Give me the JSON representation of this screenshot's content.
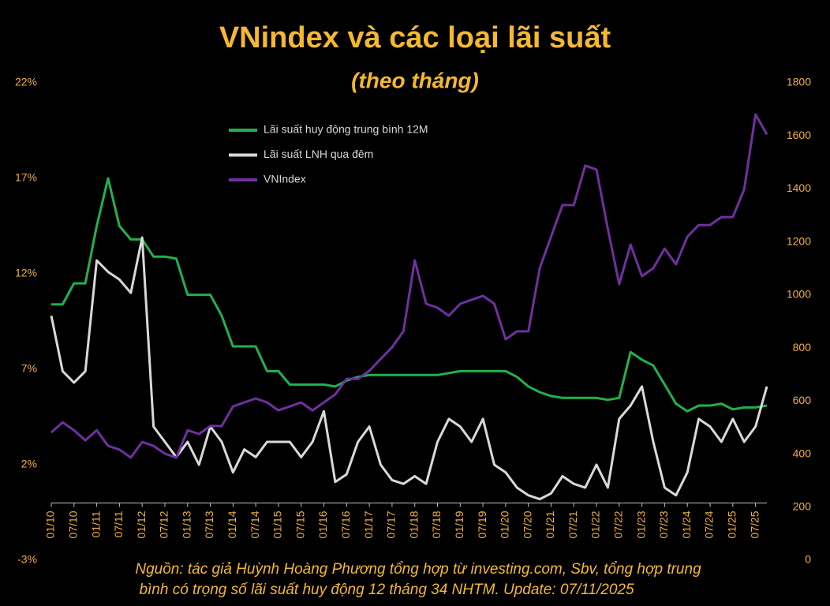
{
  "chart_data": {
    "type": "line",
    "title": "VNindex và các loại lãi suất",
    "subtitle": "(theo tháng)",
    "source": [
      "Nguồn: tác giả Huỳnh Hoàng Phương tổng hợp từ investing.com, Sbv, tổng hợp trung",
      "bình có trọng số lãi suất huy động 12 tháng 34 NHTM. Update: 07/11/2025"
    ],
    "categories": [
      "01/10",
      null,
      "07/10",
      null,
      "01/11",
      null,
      "07/11",
      null,
      "01/12",
      null,
      "07/12",
      null,
      "01/13",
      null,
      "07/13",
      null,
      "01/14",
      null,
      "07/14",
      null,
      "01/15",
      null,
      "07/15",
      null,
      "01/16",
      null,
      "07/16",
      null,
      "01/17",
      null,
      "07/17",
      null,
      "01/18",
      null,
      "07/18",
      null,
      "01/19",
      null,
      "07/19",
      null,
      "01/20",
      null,
      "07/20",
      null,
      "01/21",
      null,
      "07/21",
      null,
      "01/22",
      null,
      "07/22",
      null,
      "01/23",
      null,
      "07/23",
      null,
      "01/24",
      null,
      "07/24",
      null,
      "01/25",
      null,
      "07/25",
      null
    ],
    "series": [
      {
        "name": "Lãi suất huy động trung bình 12M",
        "color": "#22b14c",
        "axis": "y",
        "values": [
          10.4,
          10.4,
          11.5,
          11.5,
          14.5,
          17.0,
          14.5,
          13.8,
          13.8,
          12.9,
          12.9,
          12.8,
          10.9,
          10.9,
          10.9,
          9.8,
          8.2,
          8.2,
          8.2,
          6.9,
          6.9,
          6.2,
          6.2,
          6.2,
          6.2,
          6.1,
          6.4,
          6.6,
          6.7,
          6.7,
          6.7,
          6.7,
          6.7,
          6.7,
          6.7,
          6.8,
          6.9,
          6.9,
          6.9,
          6.9,
          6.9,
          6.6,
          6.1,
          5.8,
          5.6,
          5.5,
          5.5,
          5.5,
          5.5,
          5.4,
          5.5,
          7.9,
          7.5,
          7.2,
          6.2,
          5.2,
          4.8,
          5.1,
          5.1,
          5.2,
          4.9,
          5.0,
          5.0,
          5.1
        ]
      },
      {
        "name": "Lãi suất LNH qua đêm",
        "color": "#d9d9d9",
        "axis": "y",
        "values": [
          9.8,
          6.9,
          6.3,
          6.9,
          12.7,
          12.1,
          11.7,
          11.0,
          13.9,
          4.0,
          3.2,
          2.4,
          3.2,
          2.0,
          4.0,
          3.2,
          1.6,
          2.8,
          2.4,
          3.2,
          3.2,
          3.2,
          2.4,
          3.2,
          4.8,
          1.1,
          1.5,
          3.2,
          4.0,
          2.0,
          1.2,
          1.0,
          1.4,
          1.0,
          3.2,
          4.4,
          4.0,
          3.2,
          4.4,
          2.0,
          1.6,
          0.8,
          0.4,
          0.2,
          0.5,
          1.4,
          1.0,
          0.8,
          2.0,
          0.8,
          4.4,
          5.1,
          6.1,
          3.2,
          0.8,
          0.4,
          1.6,
          4.4,
          4.0,
          3.2,
          4.4,
          3.2,
          4.0,
          6.1
        ]
      },
      {
        "name": "VNIndex",
        "color": "#7030a0",
        "axis": "y2",
        "values": [
          482,
          520,
          490,
          452,
          490,
          431,
          417,
          387,
          446,
          431,
          402,
          387,
          490,
          476,
          506,
          506,
          580,
          595,
          610,
          595,
          565,
          580,
          595,
          565,
          595,
          625,
          684,
          684,
          714,
          759,
          803,
          863,
          1131,
          967,
          952,
          922,
          967,
          982,
          997,
          967,
          833,
          863,
          863,
          1101,
          1220,
          1339,
          1339,
          1488,
          1473,
          1250,
          1041,
          1190,
          1071,
          1101,
          1175,
          1116,
          1220,
          1264,
          1264,
          1294,
          1294,
          1398,
          1681,
          1606
        ]
      }
    ],
    "ylim": [
      -3,
      22
    ],
    "yticks": [
      {
        "value": -3,
        "label": "-3%"
      },
      {
        "value": 2,
        "label": "2%"
      },
      {
        "value": 7,
        "label": "7%"
      },
      {
        "value": 12,
        "label": "12%"
      },
      {
        "value": 17,
        "label": "17%"
      },
      {
        "value": 22,
        "label": "22%"
      }
    ],
    "y2lim": [
      0,
      1800
    ],
    "y2ticks": [
      0,
      200,
      400,
      600,
      800,
      1000,
      1200,
      1400,
      1600,
      1800
    ],
    "grid": false
  }
}
